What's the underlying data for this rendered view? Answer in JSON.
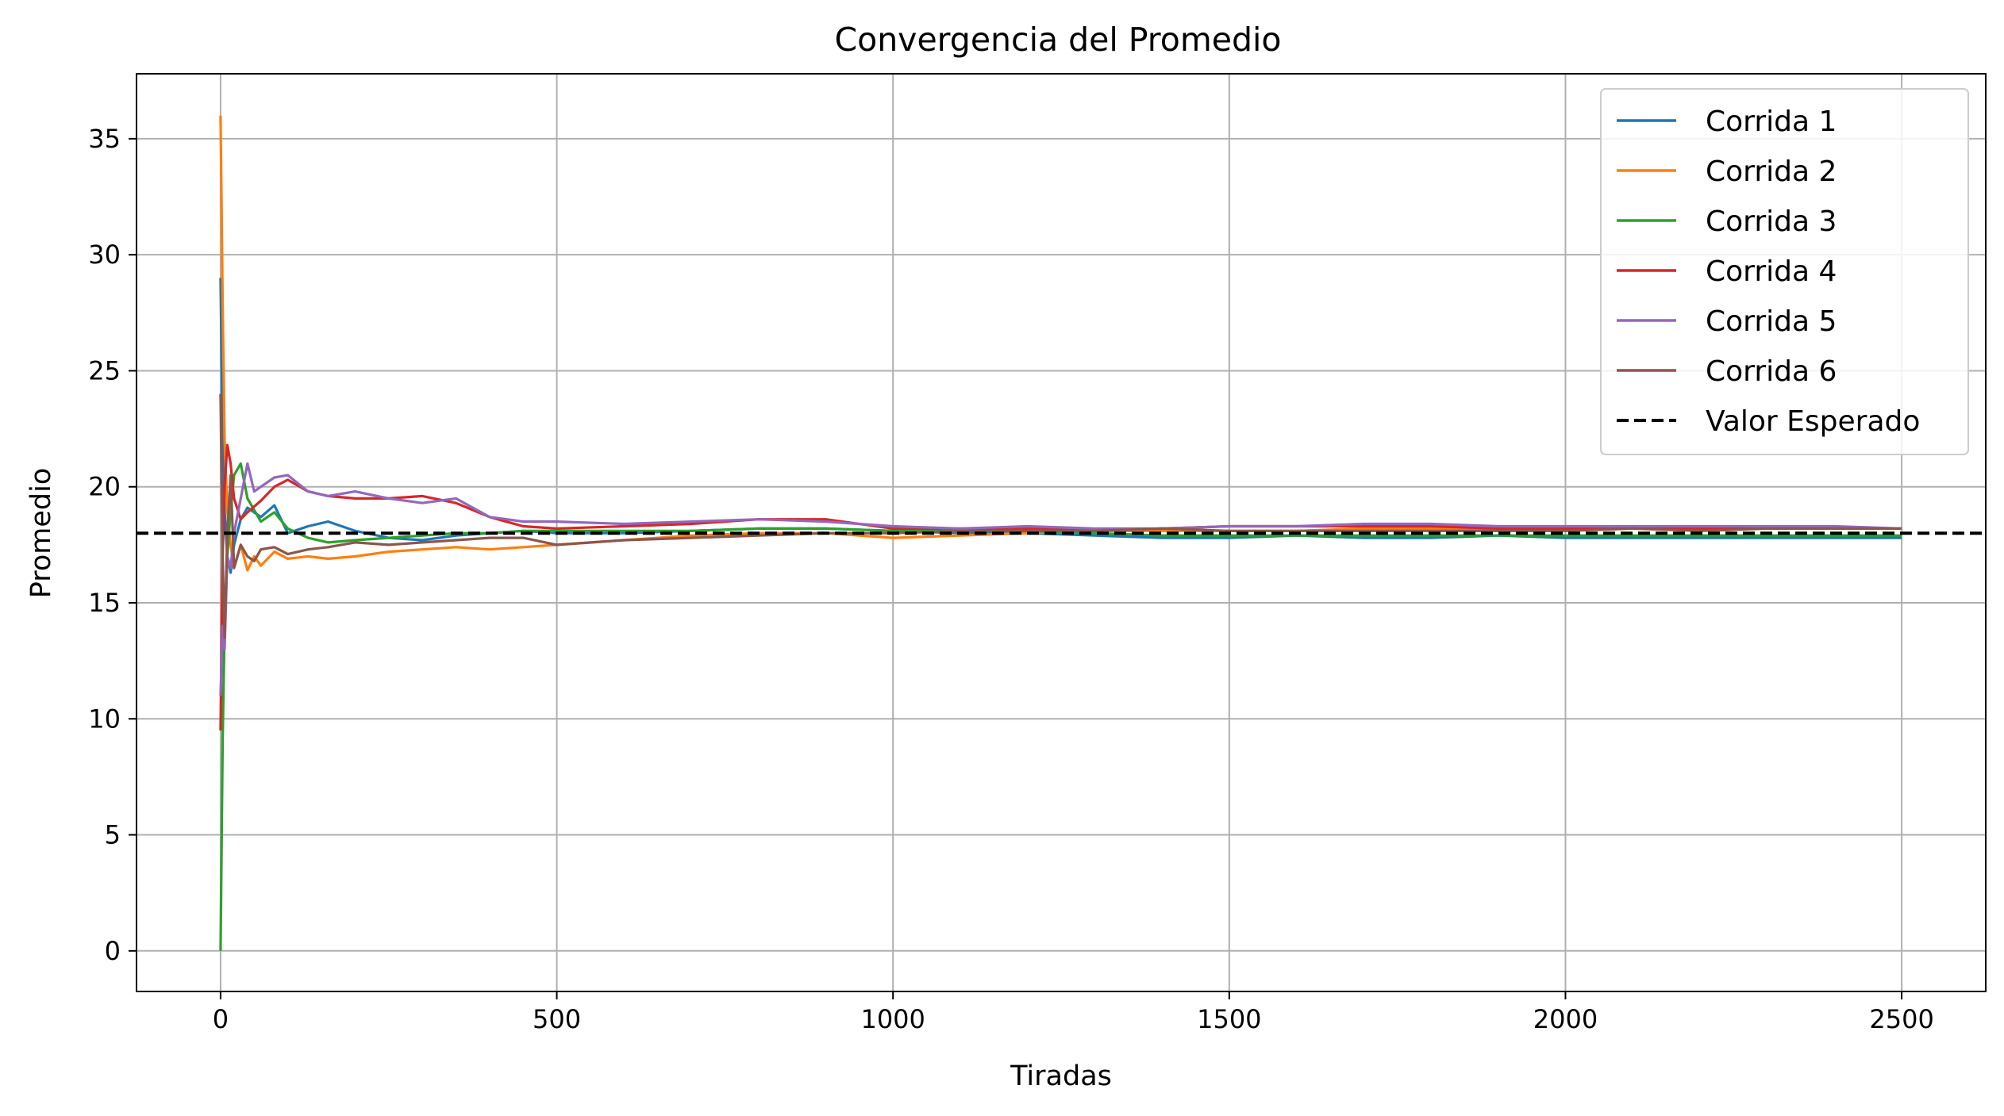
{
  "chart_data": {
    "type": "line",
    "title": "Convergencia del Promedio",
    "xlabel": "Tiradas",
    "ylabel": "Promedio",
    "xlim": [
      -125,
      2625
    ],
    "ylim": [
      -1.75,
      37.8
    ],
    "xticks": [
      0,
      500,
      1000,
      1500,
      2000,
      2500
    ],
    "yticks": [
      0,
      5,
      10,
      15,
      20,
      25,
      30,
      35
    ],
    "grid": true,
    "legend_position": "top-right",
    "expected_value": 18,
    "series": [
      {
        "name": "Corrida 1",
        "color": "#1f77b4",
        "x": [
          0,
          3,
          6,
          10,
          15,
          20,
          30,
          40,
          60,
          80,
          100,
          130,
          160,
          200,
          250,
          300,
          350,
          400,
          450,
          500,
          600,
          700,
          800,
          900,
          1000,
          1100,
          1200,
          1300,
          1400,
          1500,
          1600,
          1700,
          1800,
          1900,
          2000,
          2100,
          2200,
          2300,
          2400,
          2500
        ],
        "y": [
          29,
          22,
          19,
          17,
          16.3,
          17.5,
          18.6,
          19.1,
          18.7,
          19.2,
          18.0,
          18.3,
          18.5,
          18.1,
          17.8,
          17.7,
          17.9,
          18.0,
          18.1,
          18.0,
          18.0,
          18.1,
          18.2,
          18.2,
          18.1,
          18.0,
          18.0,
          17.9,
          17.8,
          17.8,
          17.9,
          17.8,
          17.8,
          17.9,
          17.8,
          17.8,
          17.8,
          17.8,
          17.8,
          17.8
        ]
      },
      {
        "name": "Corrida 2",
        "color": "#ff7f0e",
        "x": [
          0,
          3,
          6,
          10,
          15,
          20,
          30,
          40,
          50,
          60,
          80,
          100,
          130,
          160,
          200,
          250,
          300,
          350,
          400,
          450,
          500,
          600,
          700,
          800,
          900,
          1000,
          1100,
          1200,
          1300,
          1400,
          1500,
          1600,
          1700,
          1800,
          1900,
          2000,
          2100,
          2200,
          2300,
          2400,
          2500
        ],
        "y": [
          36,
          28,
          22,
          19,
          17.5,
          16.5,
          17.5,
          16.4,
          17.0,
          16.6,
          17.2,
          16.9,
          17.0,
          16.9,
          17.0,
          17.2,
          17.3,
          17.4,
          17.3,
          17.4,
          17.5,
          17.7,
          17.9,
          18.0,
          18.0,
          17.8,
          17.9,
          18.0,
          18.1,
          18.1,
          18.1,
          18.1,
          18.2,
          18.2,
          18.2,
          18.2,
          18.2,
          18.2,
          18.2,
          18.2,
          18.2
        ]
      },
      {
        "name": "Corrida 3",
        "color": "#2ca02c",
        "x": [
          0,
          3,
          6,
          10,
          15,
          20,
          30,
          40,
          60,
          80,
          100,
          130,
          160,
          200,
          250,
          300,
          350,
          400,
          450,
          500,
          600,
          700,
          800,
          900,
          1000,
          1100,
          1200,
          1300,
          1400,
          1500,
          1600,
          1700,
          1800,
          1900,
          2000,
          2100,
          2200,
          2300,
          2400,
          2500
        ],
        "y": [
          0,
          9,
          14,
          17,
          19,
          20.5,
          21.0,
          19.5,
          18.5,
          18.9,
          18.2,
          17.8,
          17.6,
          17.7,
          17.8,
          17.9,
          18.0,
          18.0,
          18.1,
          18.1,
          18.1,
          18.1,
          18.2,
          18.2,
          18.1,
          18.1,
          18.1,
          18.0,
          17.9,
          17.9,
          17.9,
          17.9,
          17.9,
          17.9,
          17.9,
          17.9,
          17.9,
          17.9,
          17.9,
          17.9
        ]
      },
      {
        "name": "Corrida 4",
        "color": "#d62728",
        "x": [
          0,
          3,
          6,
          10,
          15,
          20,
          30,
          40,
          60,
          80,
          100,
          130,
          160,
          200,
          250,
          300,
          350,
          400,
          450,
          500,
          600,
          700,
          800,
          900,
          1000,
          1100,
          1200,
          1300,
          1400,
          1500,
          1600,
          1700,
          1800,
          1900,
          2000,
          2100,
          2200,
          2300,
          2400,
          2500
        ],
        "y": [
          9.5,
          17,
          20,
          21.8,
          21.0,
          19.5,
          18.6,
          18.9,
          19.4,
          20.0,
          20.3,
          19.8,
          19.6,
          19.5,
          19.5,
          19.6,
          19.3,
          18.7,
          18.3,
          18.2,
          18.3,
          18.4,
          18.6,
          18.6,
          18.2,
          18.2,
          18.2,
          18.1,
          18.2,
          18.3,
          18.3,
          18.3,
          18.3,
          18.2,
          18.2,
          18.2,
          18.2,
          18.2,
          18.2,
          18.2
        ]
      },
      {
        "name": "Corrida 5",
        "color": "#9467bd",
        "x": [
          0,
          3,
          6,
          10,
          15,
          20,
          30,
          40,
          50,
          60,
          80,
          100,
          130,
          160,
          200,
          250,
          300,
          350,
          400,
          450,
          500,
          600,
          700,
          800,
          900,
          1000,
          1100,
          1200,
          1300,
          1400,
          1500,
          1600,
          1700,
          1800,
          1900,
          2000,
          2100,
          2200,
          2300,
          2400,
          2500
        ],
        "y": [
          11,
          14,
          13,
          17,
          16.5,
          18.0,
          19.5,
          21.0,
          19.8,
          20.0,
          20.4,
          20.5,
          19.8,
          19.6,
          19.8,
          19.5,
          19.3,
          19.5,
          18.7,
          18.5,
          18.5,
          18.4,
          18.5,
          18.6,
          18.5,
          18.3,
          18.2,
          18.3,
          18.2,
          18.2,
          18.3,
          18.3,
          18.4,
          18.4,
          18.3,
          18.3,
          18.3,
          18.3,
          18.3,
          18.3,
          18.2
        ]
      },
      {
        "name": "Corrida 6",
        "color": "#8c564b",
        "x": [
          0,
          3,
          6,
          10,
          15,
          20,
          30,
          40,
          50,
          60,
          80,
          100,
          130,
          160,
          200,
          250,
          300,
          350,
          400,
          450,
          500,
          600,
          700,
          800,
          900,
          1000,
          1100,
          1200,
          1300,
          1400,
          1500,
          1600,
          1700,
          1800,
          1900,
          2000,
          2100,
          2200,
          2300,
          2400,
          2500
        ],
        "y": [
          24,
          17,
          13.5,
          18,
          20.5,
          16.5,
          17.5,
          17.0,
          16.8,
          17.3,
          17.4,
          17.1,
          17.3,
          17.4,
          17.6,
          17.5,
          17.6,
          17.7,
          17.8,
          17.8,
          17.5,
          17.7,
          17.8,
          17.9,
          18.0,
          18.0,
          18.1,
          18.1,
          18.1,
          18.2,
          18.1,
          18.1,
          18.1,
          18.1,
          18.1,
          18.1,
          18.2,
          18.1,
          18.2,
          18.2,
          18.2
        ]
      },
      {
        "name": "Valor Esperado",
        "color": "#000000",
        "style": "dashed",
        "x": [
          -125,
          2625
        ],
        "y": [
          18,
          18
        ]
      }
    ]
  }
}
